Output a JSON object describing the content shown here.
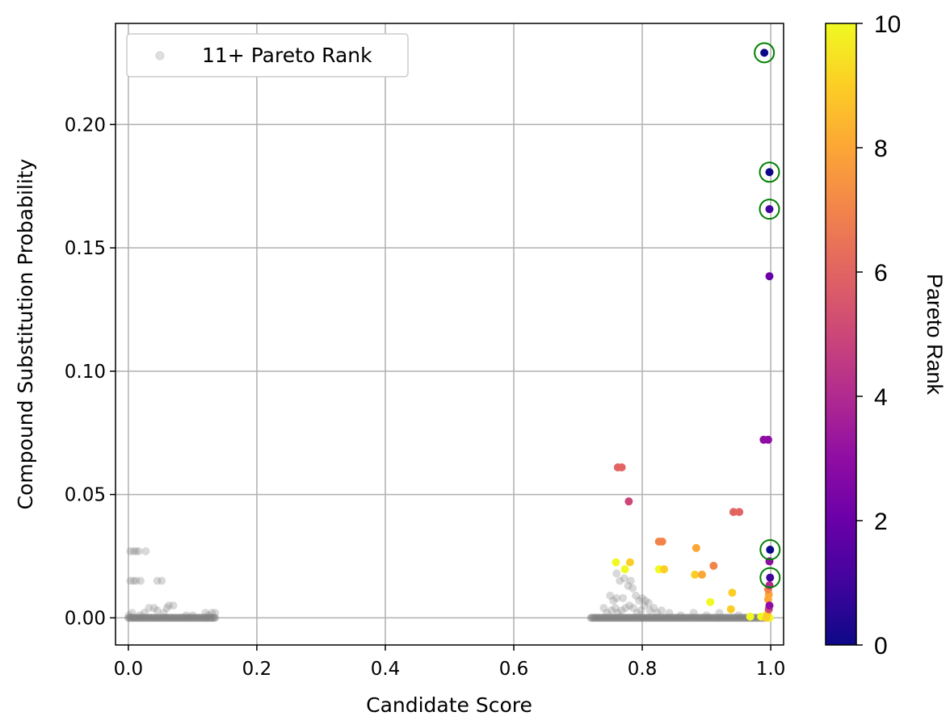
{
  "chart_data": {
    "type": "scatter",
    "xlabel": "Candidate Score",
    "ylabel": "Compound Substitution Probability",
    "xlim": [
      -0.02,
      1.02
    ],
    "ylim": [
      -0.011,
      0.241
    ],
    "xticks": [
      0.0,
      0.2,
      0.4,
      0.6,
      0.8,
      1.0
    ],
    "xtick_labels": [
      "0.0",
      "0.2",
      "0.4",
      "0.6",
      "0.8",
      "1.0"
    ],
    "yticks": [
      0.0,
      0.05,
      0.1,
      0.15,
      0.2
    ],
    "ytick_labels": [
      "0.00",
      "0.05",
      "0.10",
      "0.15",
      "0.20"
    ],
    "grid": true,
    "legend": {
      "position": "top-left",
      "entries": [
        "11+ Pareto Rank"
      ]
    },
    "colorbar": {
      "label": "Pareto Rank",
      "colormap": "plasma",
      "range": [
        0,
        10
      ],
      "ticks": [
        0,
        2,
        4,
        6,
        8,
        10
      ],
      "tick_labels": [
        "0",
        "2",
        "4",
        "6",
        "8",
        "10"
      ]
    },
    "colors": {
      "grey_points": "#808080",
      "highlight_circle": "#008000",
      "grid": "#b0b0b0"
    },
    "grey_points": [
      [
        0.003,
        0.027
      ],
      [
        0.008,
        0.027
      ],
      [
        0.012,
        0.027
      ],
      [
        0.016,
        0.027
      ],
      [
        0.027,
        0.027
      ],
      [
        0.003,
        0.015
      ],
      [
        0.008,
        0.015
      ],
      [
        0.012,
        0.015
      ],
      [
        0.019,
        0.015
      ],
      [
        0.045,
        0.015
      ],
      [
        0.052,
        0.015
      ],
      [
        0.025,
        0.002
      ],
      [
        0.032,
        0.004
      ],
      [
        0.04,
        0.004
      ],
      [
        0.045,
        0.003
      ],
      [
        0.06,
        0.004
      ],
      [
        0.063,
        0.005
      ],
      [
        0.07,
        0.005
      ],
      [
        0.055,
        0.002
      ],
      [
        0.001,
        0.001
      ],
      [
        0.006,
        0.002
      ],
      [
        0.018,
        0.001
      ],
      [
        0.12,
        0.002
      ],
      [
        0.125,
        0.001
      ],
      [
        0.13,
        0.002
      ],
      [
        0.135,
        0.002
      ],
      [
        0.1,
        0.001
      ],
      [
        0.09,
        0.001
      ],
      [
        0.76,
        0.018
      ],
      [
        0.765,
        0.015
      ],
      [
        0.772,
        0.016
      ],
      [
        0.778,
        0.013
      ],
      [
        0.782,
        0.015
      ],
      [
        0.77,
        0.008
      ],
      [
        0.785,
        0.012
      ],
      [
        0.75,
        0.009
      ],
      [
        0.755,
        0.007
      ],
      [
        0.76,
        0.008
      ],
      [
        0.79,
        0.009
      ],
      [
        0.795,
        0.007
      ],
      [
        0.8,
        0.008
      ],
      [
        0.805,
        0.007
      ],
      [
        0.81,
        0.006
      ],
      [
        0.74,
        0.004
      ],
      [
        0.745,
        0.002
      ],
      [
        0.752,
        0.003
      ],
      [
        0.758,
        0.004
      ],
      [
        0.762,
        0.002
      ],
      [
        0.768,
        0.003
      ],
      [
        0.774,
        0.004
      ],
      [
        0.78,
        0.005
      ],
      [
        0.786,
        0.004
      ],
      [
        0.792,
        0.002
      ],
      [
        0.798,
        0.003
      ],
      [
        0.803,
        0.005
      ],
      [
        0.812,
        0.003
      ],
      [
        0.818,
        0.004
      ],
      [
        0.823,
        0.002
      ],
      [
        0.83,
        0.003
      ],
      [
        0.842,
        0.002
      ],
      [
        0.86,
        0.001
      ],
      [
        0.88,
        0.002
      ],
      [
        0.9,
        0.001
      ],
      [
        0.92,
        0.002
      ],
      [
        0.95,
        0.001
      ]
    ],
    "grey_bands": [
      {
        "x_from": 0.0,
        "x_to": 0.135,
        "y": 0.0,
        "count": 70
      },
      {
        "x_from": 0.72,
        "x_to": 0.99,
        "y": 0.0,
        "count": 140
      }
    ],
    "ranked_points": [
      {
        "x": 0.99,
        "y": 0.2291,
        "rank": 0,
        "highlight": true
      },
      {
        "x": 0.998,
        "y": 0.1807,
        "rank": 0,
        "highlight": true
      },
      {
        "x": 0.998,
        "y": 0.1657,
        "rank": 1,
        "highlight": true
      },
      {
        "x": 0.998,
        "y": 0.1385,
        "rank": 2,
        "highlight": false
      },
      {
        "x": 0.989,
        "y": 0.0722,
        "rank": 3,
        "highlight": false
      },
      {
        "x": 0.996,
        "y": 0.0722,
        "rank": 3,
        "highlight": false
      },
      {
        "x": 0.999,
        "y": 0.0276,
        "rank": 0,
        "highlight": true
      },
      {
        "x": 0.998,
        "y": 0.0229,
        "rank": 3,
        "highlight": false
      },
      {
        "x": 0.999,
        "y": 0.0163,
        "rank": 1,
        "highlight": true
      },
      {
        "x": 0.998,
        "y": 0.0132,
        "rank": 4,
        "highlight": false
      },
      {
        "x": 0.998,
        "y": 0.005,
        "rank": 3,
        "highlight": false
      },
      {
        "x": 0.997,
        "y": 0.0035,
        "rank": 5,
        "highlight": false
      },
      {
        "x": 0.996,
        "y": 0.0115,
        "rank": 7,
        "highlight": false
      },
      {
        "x": 0.997,
        "y": 0.0095,
        "rank": 8,
        "highlight": false
      },
      {
        "x": 0.996,
        "y": 0.0075,
        "rank": 8,
        "highlight": false
      },
      {
        "x": 0.995,
        "y": 0.0015,
        "rank": 9,
        "highlight": false
      },
      {
        "x": 0.998,
        "y": 0.0,
        "rank": 10,
        "highlight": false
      },
      {
        "x": 0.993,
        "y": 0.0,
        "rank": 9,
        "highlight": false
      },
      {
        "x": 0.985,
        "y": 0.0005,
        "rank": 10,
        "highlight": false
      },
      {
        "x": 0.968,
        "y": 0.0005,
        "rank": 10,
        "highlight": false
      },
      {
        "x": 0.762,
        "y": 0.061,
        "rank": 6,
        "highlight": false
      },
      {
        "x": 0.768,
        "y": 0.061,
        "rank": 6,
        "highlight": false
      },
      {
        "x": 0.779,
        "y": 0.0472,
        "rank": 5,
        "highlight": false
      },
      {
        "x": 0.942,
        "y": 0.0429,
        "rank": 6,
        "highlight": false
      },
      {
        "x": 0.951,
        "y": 0.0429,
        "rank": 6,
        "highlight": false
      },
      {
        "x": 0.826,
        "y": 0.0309,
        "rank": 7,
        "highlight": false
      },
      {
        "x": 0.831,
        "y": 0.0309,
        "rank": 7,
        "highlight": false
      },
      {
        "x": 0.884,
        "y": 0.0283,
        "rank": 8,
        "highlight": false
      },
      {
        "x": 0.911,
        "y": 0.0211,
        "rank": 7,
        "highlight": false
      },
      {
        "x": 0.759,
        "y": 0.0225,
        "rank": 10,
        "highlight": false
      },
      {
        "x": 0.781,
        "y": 0.0225,
        "rank": 9,
        "highlight": false
      },
      {
        "x": 0.773,
        "y": 0.0197,
        "rank": 10,
        "highlight": false
      },
      {
        "x": 0.826,
        "y": 0.0197,
        "rank": 10,
        "highlight": false
      },
      {
        "x": 0.834,
        "y": 0.0197,
        "rank": 9,
        "highlight": false
      },
      {
        "x": 0.882,
        "y": 0.0175,
        "rank": 9,
        "highlight": false
      },
      {
        "x": 0.893,
        "y": 0.0175,
        "rank": 8,
        "highlight": false
      },
      {
        "x": 0.906,
        "y": 0.0064,
        "rank": 10,
        "highlight": false
      },
      {
        "x": 0.94,
        "y": 0.0102,
        "rank": 9,
        "highlight": false
      },
      {
        "x": 0.938,
        "y": 0.0035,
        "rank": 9,
        "highlight": false
      }
    ]
  }
}
